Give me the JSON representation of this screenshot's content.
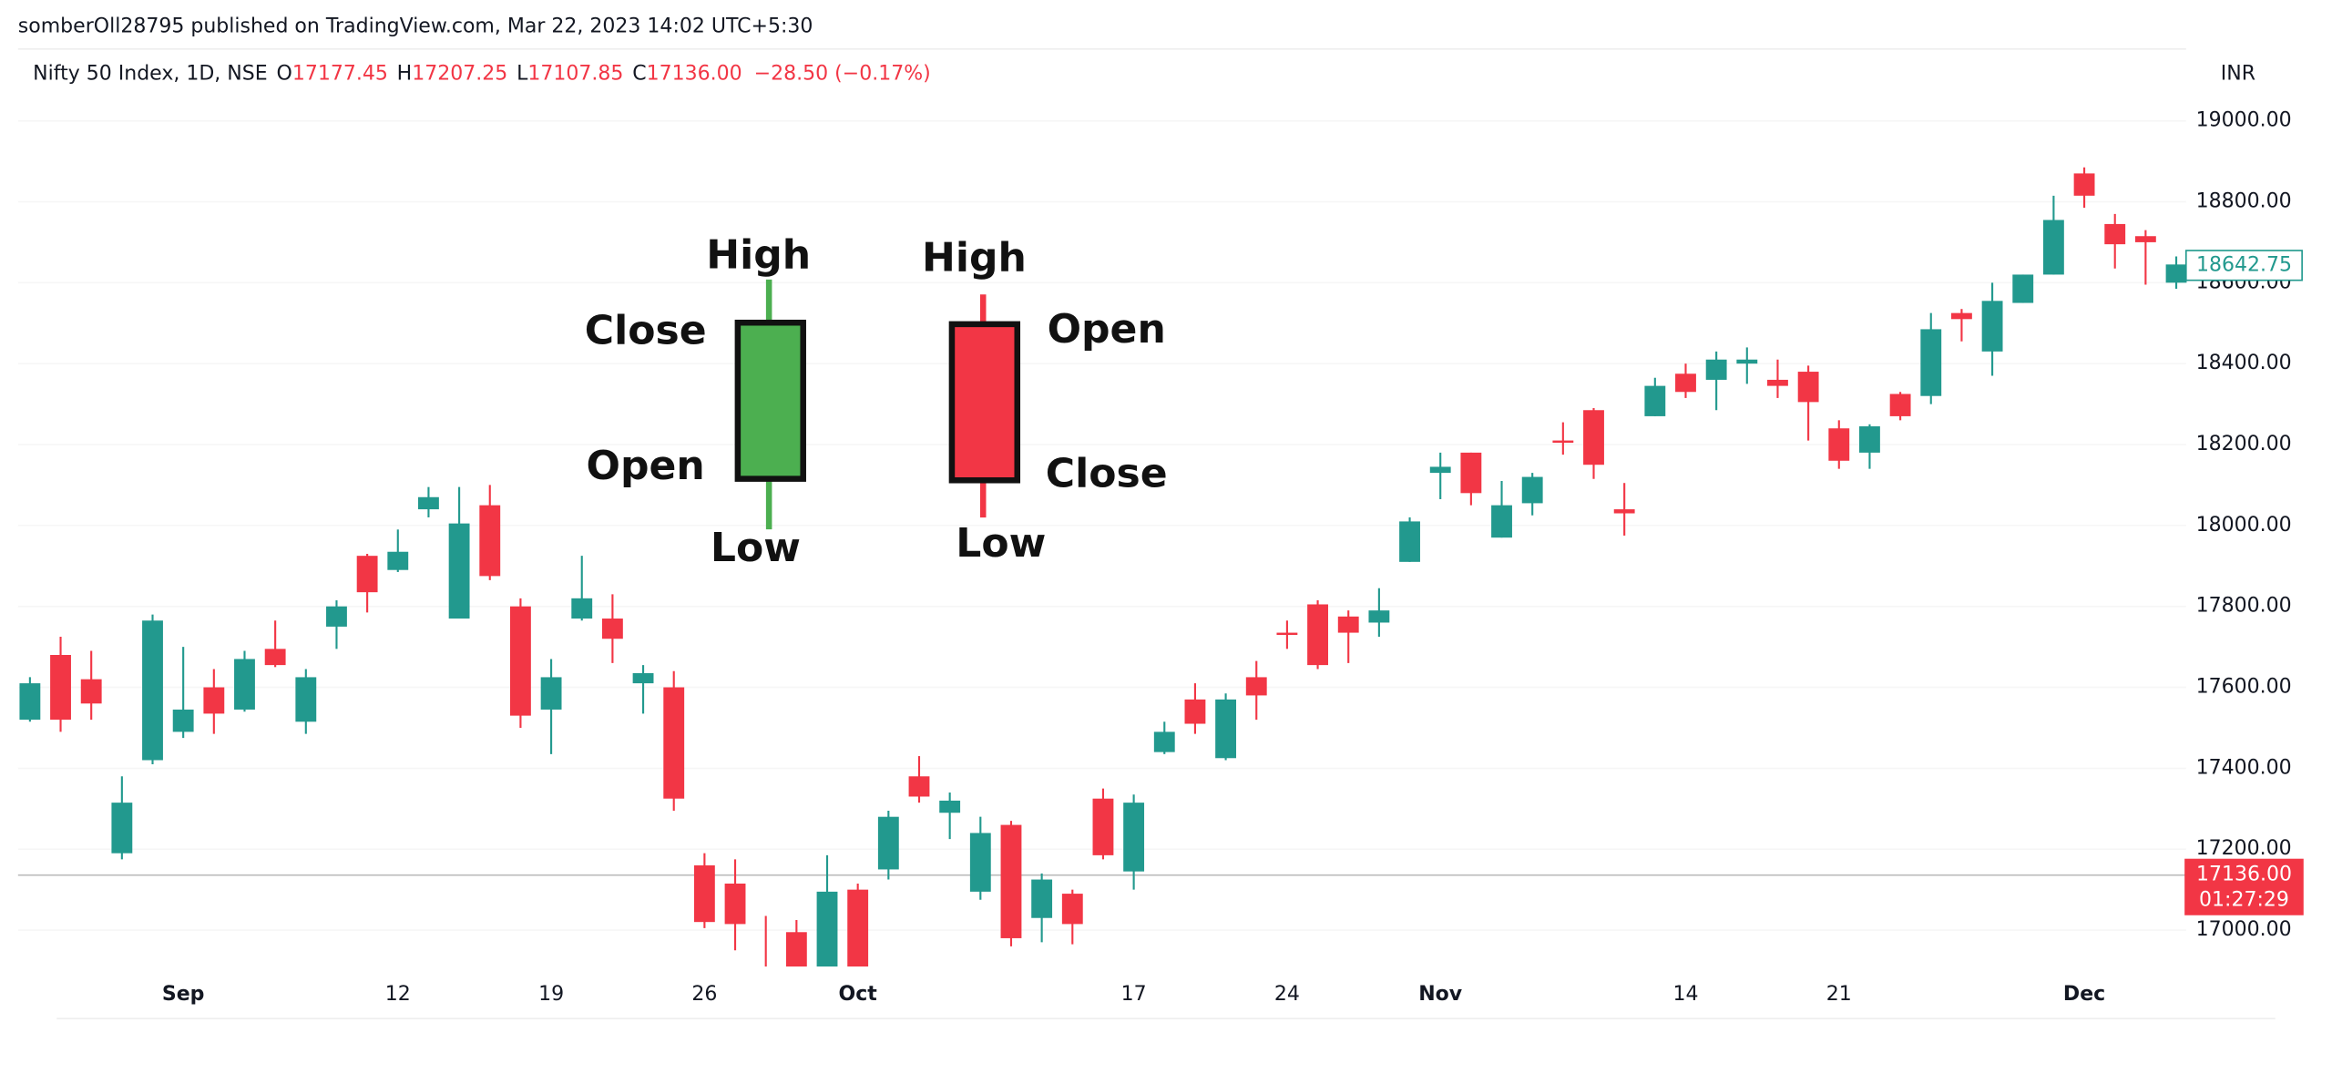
{
  "chart_data": {
    "type": "candlestick",
    "publisher": "somberOll28795 published on TradingView.com, Mar 22, 2023 14:02 UTC+5:30",
    "title": "Nifty 50 Index, 1D, NSE",
    "header_values": [
      {
        "key": "O",
        "value": "17177.45"
      },
      {
        "key": "H",
        "value": "17207.25"
      },
      {
        "key": "L",
        "value": "17107.85"
      },
      {
        "key": "C",
        "value": "17136.00"
      }
    ],
    "change": "−28.50 (−0.17%)",
    "currency": "INR",
    "categories": [
      null,
      null,
      null,
      null,
      null,
      "Sep",
      null,
      null,
      null,
      null,
      null,
      null,
      "12",
      null,
      null,
      null,
      null,
      "19",
      null,
      null,
      null,
      null,
      "26",
      null,
      null,
      null,
      null,
      "Oct",
      null,
      null,
      null,
      null,
      null,
      null,
      null,
      null,
      "17",
      null,
      null,
      null,
      null,
      "24",
      null,
      null,
      null,
      null,
      "Nov",
      null,
      null,
      null,
      null,
      null,
      null,
      null,
      "14",
      null,
      null,
      null,
      null,
      "21",
      null,
      null,
      null,
      null,
      null,
      null,
      null,
      "Dec",
      null,
      null,
      null
    ],
    "open": [
      17520,
      17680,
      17620,
      17190,
      17420,
      17490,
      17600,
      17545,
      17695,
      17515,
      17750,
      17925,
      17890,
      18040,
      17770,
      18050,
      17800,
      17545,
      17770,
      17770,
      17610,
      17600,
      17160,
      17115,
      16870,
      16995,
      16800,
      17100,
      17150,
      17380,
      17290,
      17095,
      17260,
      17030,
      17090,
      17325,
      17145,
      17440,
      17570,
      17425,
      17625,
      17735,
      17805,
      17775,
      17760,
      17910,
      18130,
      18180,
      17970,
      18055,
      18210,
      18285,
      18040,
      18270,
      18375,
      18360,
      18400,
      18360,
      18380,
      18240,
      18180,
      18325,
      18320,
      18525,
      18430,
      18550,
      18620,
      18870,
      18745,
      18715,
      18600
    ],
    "high": [
      17625,
      17725,
      17690,
      17380,
      17780,
      17700,
      17645,
      17690,
      17765,
      17645,
      17815,
      17930,
      17990,
      18095,
      18095,
      18100,
      17820,
      17670,
      17925,
      17830,
      17655,
      17640,
      17190,
      17175,
      17035,
      17025,
      17185,
      17115,
      17295,
      17430,
      17340,
      17280,
      17270,
      17140,
      17100,
      17350,
      17335,
      17515,
      17610,
      17585,
      17665,
      17765,
      17815,
      17790,
      17845,
      18020,
      18180,
      18180,
      18110,
      18130,
      18255,
      18290,
      18105,
      18365,
      18400,
      18430,
      18440,
      18410,
      18395,
      18260,
      18250,
      18330,
      18525,
      18535,
      18600,
      18620,
      18815,
      18885,
      18770,
      18730,
      18665
    ],
    "low": [
      17515,
      17490,
      17520,
      17175,
      17410,
      17475,
      17485,
      17540,
      17650,
      17485,
      17695,
      17785,
      17885,
      18020,
      17770,
      17865,
      17500,
      17435,
      17765,
      17660,
      17535,
      17295,
      17005,
      16950,
      16820,
      16790,
      16750,
      16855,
      17125,
      17315,
      17225,
      17075,
      16960,
      16970,
      16965,
      17175,
      17100,
      17435,
      17485,
      17420,
      17520,
      17695,
      17645,
      17660,
      17725,
      17910,
      18065,
      18050,
      17970,
      18025,
      18175,
      18115,
      17975,
      18270,
      18315,
      18285,
      18350,
      18315,
      18210,
      18140,
      18140,
      18260,
      18300,
      18455,
      18370,
      18550,
      18620,
      18785,
      18635,
      18595,
      18585
    ],
    "close": [
      17610,
      17520,
      17560,
      17315,
      17765,
      17545,
      17535,
      17670,
      17655,
      17625,
      17800,
      17835,
      17935,
      18070,
      18005,
      17875,
      17530,
      17625,
      17820,
      17720,
      17635,
      17325,
      17020,
      17015,
      16860,
      16820,
      17095,
      16885,
      17280,
      17330,
      17320,
      17240,
      16980,
      17125,
      17015,
      17185,
      17315,
      17490,
      17510,
      17570,
      17580,
      17730,
      17655,
      17735,
      17790,
      18010,
      18145,
      18080,
      18050,
      18120,
      18205,
      18150,
      18030,
      18345,
      18330,
      18410,
      18410,
      18345,
      18305,
      18160,
      18245,
      18270,
      18485,
      18510,
      18555,
      18620,
      18755,
      18815,
      18695,
      18700,
      18645
    ],
    "up_color": "#22998e",
    "down_color": "#f23645",
    "ylim": [
      16910,
      19170
    ],
    "yticks": [
      {
        "value": 17000,
        "label": "17000.00"
      },
      {
        "value": 17200,
        "label": "17200.00"
      },
      {
        "value": 17400,
        "label": "17400.00"
      },
      {
        "value": 17600,
        "label": "17600.00"
      },
      {
        "value": 17800,
        "label": "17800.00"
      },
      {
        "value": 18000,
        "label": "18000.00"
      },
      {
        "value": 18200,
        "label": "18200.00"
      },
      {
        "value": 18400,
        "label": "18400.00"
      },
      {
        "value": 18600,
        "label": "18600.00"
      },
      {
        "value": 18800,
        "label": "18800.00"
      },
      {
        "value": 19000,
        "label": "19000.00"
      }
    ],
    "grid": true,
    "marker_price": {
      "value": 18642.75,
      "label": "18642.75"
    },
    "last_price": {
      "value": 17136,
      "label": "17136.00",
      "timer": "01:27:29"
    },
    "annotations": {
      "bullish": {
        "high": "High",
        "close": "Close",
        "open": "Open",
        "low": "Low"
      },
      "bearish": {
        "high": "High",
        "open": "Open",
        "close": "Close",
        "low": "Low"
      }
    }
  }
}
